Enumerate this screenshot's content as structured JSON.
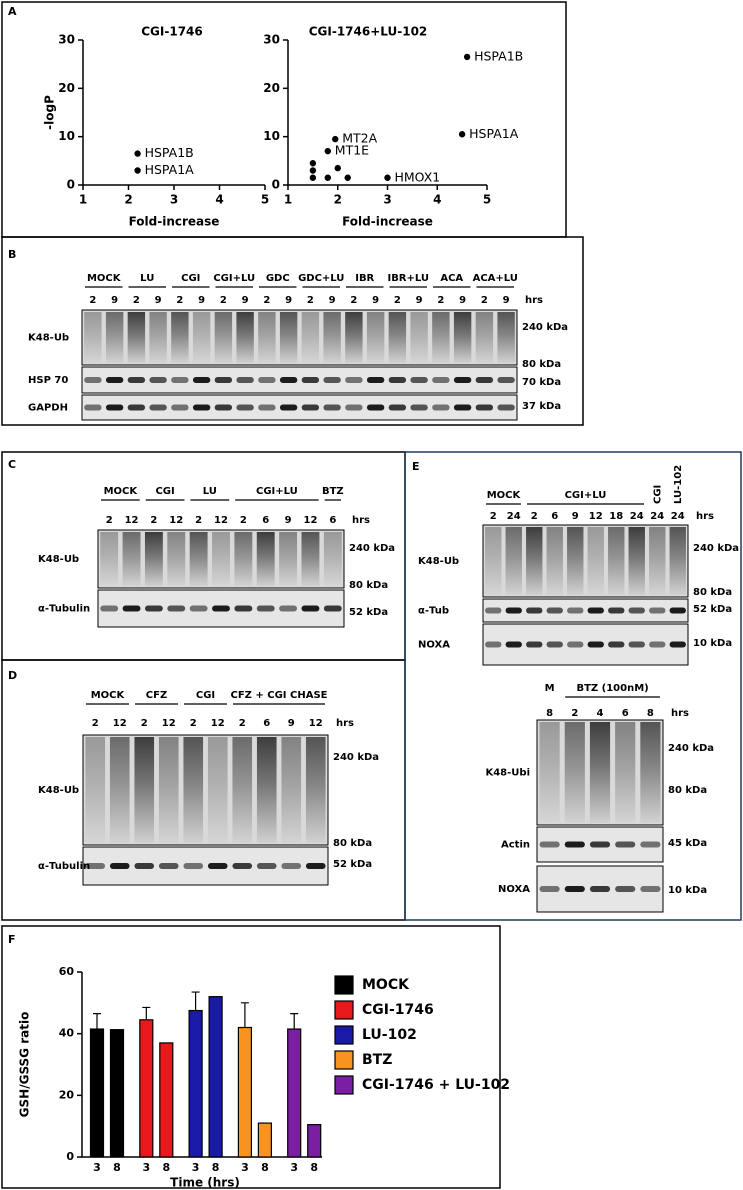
{
  "panel_labels": [
    "A",
    "B",
    "C",
    "D",
    "E",
    "F"
  ],
  "chart_data": [
    {
      "type": "scatter",
      "title": "CGI-1746",
      "x": [
        2.2,
        2.2
      ],
      "values": [
        6.5,
        3
      ],
      "point_labels": [
        "HSPA1B",
        "HSPA1A"
      ],
      "color": "#000000",
      "xlim": [
        1,
        5
      ],
      "ylim": [
        0,
        30
      ],
      "xticks": [
        1,
        2,
        3,
        4,
        5
      ],
      "yticks": [
        0,
        10,
        20,
        30
      ],
      "xlabel": "Fold-increase",
      "ylabel": "-logP"
    },
    {
      "type": "scatter",
      "title": "CGI-1746+LU-102",
      "x": [
        4.6,
        4.5,
        1.95,
        1.8,
        3,
        1.5,
        1.5,
        1.5,
        1.8,
        2,
        2.2
      ],
      "values": [
        26.5,
        10.5,
        9.5,
        7,
        1.5,
        4.5,
        3,
        1.5,
        1.5,
        3.5,
        1.5
      ],
      "point_labels": [
        "HSPA1B",
        "HSPA1A",
        "MT2A",
        "MT1E",
        "HMOX1",
        null,
        null,
        null,
        null,
        null,
        null
      ],
      "color": "#000000",
      "xlim": [
        1,
        5
      ],
      "ylim": [
        0,
        30
      ],
      "xticks": [
        1,
        2,
        3,
        4,
        5
      ],
      "yticks": [
        0,
        10,
        20,
        30
      ],
      "xlabel": "Fold-increase"
    },
    {
      "type": "bar",
      "categories": [
        "3",
        "8"
      ],
      "ylim": [
        0,
        60
      ],
      "yticks": [
        0,
        20,
        40,
        60
      ],
      "xlabel": "Time (hrs)",
      "ylabel": "GSH/GSSG ratio",
      "series": [
        {
          "name": "MOCK",
          "color": "#000000",
          "values": [
            41.5,
            41.3
          ],
          "errors": [
            5,
            null
          ]
        },
        {
          "name": "CGI-1746",
          "color": "#e8191c",
          "values": [
            44.5,
            37
          ],
          "errors": [
            4,
            null
          ]
        },
        {
          "name": "LU-102",
          "color": "#1a1aa8",
          "values": [
            47.5,
            52
          ],
          "errors": [
            6,
            null
          ]
        },
        {
          "name": "BTZ",
          "color": "#f7931e",
          "values": [
            42,
            11
          ],
          "errors": [
            8,
            null
          ]
        },
        {
          "name": "CGI-1746 + LU-102",
          "color": "#7b1fa2",
          "values": [
            41.5,
            10.5
          ],
          "errors": [
            5,
            null
          ]
        }
      ]
    }
  ],
  "blots": [
    {
      "groups": [
        {
          "label": "MOCK",
          "times": [
            2,
            9
          ]
        },
        {
          "label": "LU",
          "times": [
            2,
            9
          ]
        },
        {
          "label": "CGI",
          "times": [
            2,
            9
          ]
        },
        {
          "label": "CGI+LU",
          "times": [
            2,
            9
          ]
        },
        {
          "label": "GDC",
          "times": [
            2,
            9
          ]
        },
        {
          "label": "GDC+LU",
          "times": [
            2,
            9
          ]
        },
        {
          "label": "IBR",
          "times": [
            2,
            9
          ]
        },
        {
          "label": "IBR+LU",
          "times": [
            2,
            9
          ]
        },
        {
          "label": "ACA",
          "times": [
            2,
            9
          ]
        },
        {
          "label": "ACA+LU",
          "times": [
            2,
            9
          ]
        }
      ],
      "time_unit": "hrs",
      "rows": [
        {
          "label": "K48-Ub",
          "markers": [
            "240 kDa",
            "80 kDa"
          ]
        },
        {
          "label": "HSP 70",
          "markers": [
            "70 kDa"
          ]
        },
        {
          "label": "GAPDH",
          "markers": [
            "37 kDa"
          ]
        }
      ]
    },
    {
      "groups": [
        {
          "label": "MOCK",
          "times": [
            2,
            12
          ]
        },
        {
          "label": "CGI",
          "times": [
            2,
            12
          ]
        },
        {
          "label": "LU",
          "times": [
            2,
            12
          ]
        },
        {
          "label": "CGI+LU",
          "times": [
            2,
            6,
            9,
            12
          ]
        },
        {
          "label": "BTZ",
          "times": [
            6
          ]
        }
      ],
      "time_unit": "hrs",
      "rows": [
        {
          "label": "K48-Ub",
          "markers": [
            "240 kDa",
            "80 kDa"
          ]
        },
        {
          "label": "α-Tubulin",
          "markers": [
            "52 kDa"
          ]
        }
      ]
    },
    {
      "groups": [
        {
          "label": "MOCK",
          "times": [
            2,
            12
          ]
        },
        {
          "label": "CFZ",
          "times": [
            2,
            12
          ]
        },
        {
          "label": "CGI",
          "times": [
            2,
            12
          ]
        },
        {
          "label": "CFZ + CGI CHASE",
          "times": [
            2,
            6,
            9,
            12
          ]
        }
      ],
      "time_unit": "hrs",
      "rows": [
        {
          "label": "K48-Ub",
          "markers": [
            "240 kDa",
            "80 kDa"
          ]
        },
        {
          "label": "α-Tubulin",
          "markers": [
            "52 kDa"
          ]
        }
      ]
    },
    {
      "groups": [
        {
          "label": "MOCK",
          "times": [
            2,
            24
          ]
        },
        {
          "label": "CGI+LU",
          "times": [
            2,
            6,
            9,
            12,
            18,
            24
          ]
        },
        {
          "label": "CGI",
          "times": [
            24
          ]
        },
        {
          "label": "LU-102",
          "times": [
            24
          ]
        }
      ],
      "time_unit": "hrs",
      "rows": [
        {
          "label": "K48-Ub",
          "markers": [
            "240 kDa",
            "80 kDa"
          ]
        },
        {
          "label": "α-Tub",
          "markers": [
            "52 kDa"
          ]
        },
        {
          "label": "NOXA",
          "markers": [
            "10 kDa"
          ]
        }
      ]
    },
    {
      "groups": [
        {
          "label": "M",
          "times": [
            8
          ]
        },
        {
          "label": "BTZ (100nM)",
          "times": [
            2,
            4,
            6,
            8
          ]
        }
      ],
      "time_unit": "hrs",
      "rows": [
        {
          "label": "K48-Ubi",
          "markers": [
            "240 kDa",
            "80 kDa"
          ]
        },
        {
          "label": "Actin",
          "markers": [
            "45 kDa"
          ]
        },
        {
          "label": "NOXA",
          "markers": [
            "10 kDa"
          ]
        }
      ]
    }
  ]
}
